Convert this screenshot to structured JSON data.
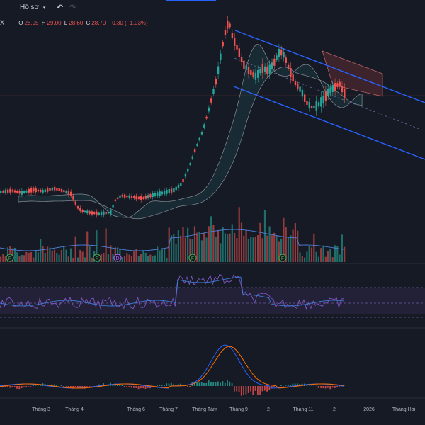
{
  "toolbar": {
    "profile_label": "Hồ sơ",
    "undo_icon": "undo-icon",
    "redo_icon": "redo-icon",
    "dropdown_icon": "chevron-down-icon"
  },
  "legend": {
    "symbol_tail": "X",
    "open_key": "O",
    "open": "28.95",
    "high_key": "H",
    "high": "29.00",
    "low_key": "L",
    "low": "28.60",
    "close_key": "C",
    "close": "28.70",
    "change": "−0.30 (−1.03%)"
  },
  "colors": {
    "up": "#26a69a",
    "down": "#ef5350",
    "channel": "#2962ff",
    "rsi": "#7e57c2",
    "macd": "#2962ff",
    "signal": "#ff6d00",
    "background": "#161a25"
  },
  "chart_data": {
    "type": "candlestick",
    "x_ticks": [
      "Tháng 3",
      "Tháng 4",
      "Tháng 6",
      "Tháng 7",
      "Tháng Tám",
      "Tháng 9",
      "2",
      "Tháng 11",
      "2",
      "2026",
      "Tháng Hai"
    ],
    "event_markers": [
      "F",
      "F",
      "F",
      "D",
      "F",
      "F"
    ],
    "indicators": [
      "Ichimoku Cloud",
      "Regression channel",
      "Volume",
      "RSI",
      "MACD"
    ],
    "price_path": [
      [
        0,
        271
      ],
      [
        15,
        269
      ],
      [
        30,
        272
      ],
      [
        45,
        268
      ],
      [
        60,
        270
      ],
      [
        75,
        266
      ],
      [
        90,
        270
      ],
      [
        100,
        274
      ],
      [
        108,
        292
      ],
      [
        115,
        298
      ],
      [
        125,
        300
      ],
      [
        140,
        302
      ],
      [
        155,
        300
      ],
      [
        162,
        282
      ],
      [
        170,
        276
      ],
      [
        185,
        278
      ],
      [
        200,
        280
      ],
      [
        215,
        275
      ],
      [
        230,
        272
      ],
      [
        245,
        268
      ],
      [
        255,
        260
      ],
      [
        265,
        238
      ],
      [
        275,
        210
      ],
      [
        285,
        185
      ],
      [
        295,
        150
      ],
      [
        305,
        110
      ],
      [
        312,
        70
      ],
      [
        318,
        40
      ],
      [
        322,
        30
      ],
      [
        328,
        55
      ],
      [
        335,
        70
      ],
      [
        342,
        90
      ],
      [
        350,
        100
      ],
      [
        360,
        108
      ],
      [
        370,
        96
      ],
      [
        378,
        100
      ],
      [
        386,
        88
      ],
      [
        394,
        72
      ],
      [
        400,
        78
      ],
      [
        408,
        100
      ],
      [
        416,
        118
      ],
      [
        424,
        128
      ],
      [
        432,
        145
      ],
      [
        440,
        152
      ],
      [
        448,
        148
      ],
      [
        456,
        140
      ],
      [
        462,
        130
      ],
      [
        470,
        124
      ],
      [
        478,
        118
      ],
      [
        484,
        130
      ],
      [
        488,
        136
      ]
    ]
  }
}
